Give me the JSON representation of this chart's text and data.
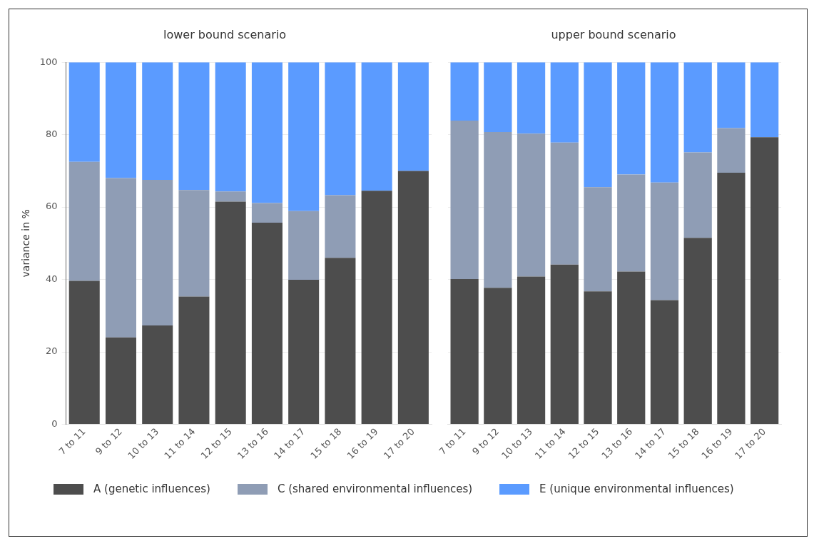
{
  "chart_data": [
    {
      "type": "bar",
      "title": "lower bound scenario",
      "ylabel": "variance in %",
      "stacked": true,
      "categories": [
        "7 to 11",
        "9 to 12",
        "10 to 13",
        "11 to 14",
        "12 to 15",
        "13 to 16",
        "14 to 17",
        "15 to 18",
        "16 to 19",
        "17 to 20"
      ],
      "series": [
        {
          "name": "A (genetic influences)",
          "color": "#4d4d4d",
          "values": [
            39.6,
            24,
            27.3,
            35.3,
            61.5,
            55.7,
            39.9,
            46,
            64.5,
            70
          ]
        },
        {
          "name": "C (shared environmental influences)",
          "color": "#8f9db5",
          "values": [
            32.9,
            44,
            40.2,
            29.4,
            2.8,
            5.4,
            19,
            17.3,
            0,
            0
          ]
        },
        {
          "name": "E (unique environmental influences)",
          "color": "#5b9bff",
          "values": [
            27.5,
            32,
            32.5,
            35.3,
            35.7,
            38.9,
            41.1,
            36.7,
            35.5,
            30
          ]
        }
      ],
      "ylim": [
        0,
        100
      ],
      "yticks": [
        0,
        20,
        40,
        60,
        80,
        100
      ],
      "grid": "y",
      "legend": "bottom"
    },
    {
      "type": "bar",
      "title": "upper bound scenario",
      "stacked": true,
      "categories": [
        "7 to 11",
        "9 to 12",
        "10 to 13",
        "11 to 14",
        "12 to 15",
        "13 to 16",
        "14 to 17",
        "15 to 18",
        "16 to 19",
        "17 to 20"
      ],
      "series": [
        {
          "color": "#4d4d4d",
          "values": [
            40.1,
            37.7,
            40.8,
            44.1,
            36.7,
            42.2,
            34.3,
            51.5,
            69.5,
            79.3
          ]
        },
        {
          "color": "#8f9db5",
          "values": [
            43.8,
            43,
            39.5,
            33.7,
            28.8,
            26.8,
            32.5,
            23.6,
            12.3,
            0
          ]
        },
        {
          "color": "#5b9bff",
          "values": [
            16.1,
            19.3,
            19.7,
            22.2,
            34.5,
            31,
            33.2,
            24.9,
            18.2,
            20.7
          ]
        }
      ],
      "ylim": [
        0,
        100
      ],
      "yticks": [
        0,
        20,
        40,
        60,
        80,
        100
      ],
      "grid": "y",
      "tick_labels": "x"
    }
  ]
}
